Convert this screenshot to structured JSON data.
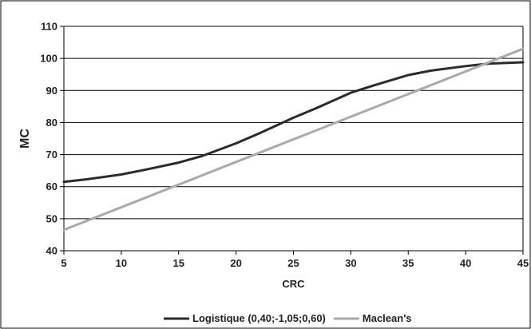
{
  "chart_data": {
    "type": "line",
    "xlabel": "CRC",
    "ylabel": "MC",
    "xlim": [
      5,
      45
    ],
    "ylim": [
      40,
      110
    ],
    "x_ticks": [
      5,
      10,
      15,
      20,
      25,
      30,
      35,
      40,
      45
    ],
    "y_ticks": [
      40,
      50,
      60,
      70,
      80,
      90,
      100,
      110
    ],
    "grid": "horizontal",
    "legend_position": "bottom",
    "series": [
      {
        "name": "Logistique (0,40;-1,05;0,60)",
        "color": "#2b2b2b",
        "x": [
          5,
          7,
          10,
          12,
          15,
          17,
          20,
          22,
          25,
          27,
          30,
          32,
          35,
          37,
          40,
          42,
          45
        ],
        "y": [
          61.5,
          62.3,
          63.8,
          65.2,
          67.5,
          69.5,
          73.5,
          76.6,
          81.5,
          84.5,
          89.3,
          91.6,
          94.8,
          96.2,
          97.6,
          98.4,
          98.8
        ]
      },
      {
        "name": "Maclean's",
        "color": "#a9a9a9",
        "x": [
          5,
          45
        ],
        "y": [
          46.5,
          103
        ]
      }
    ]
  }
}
